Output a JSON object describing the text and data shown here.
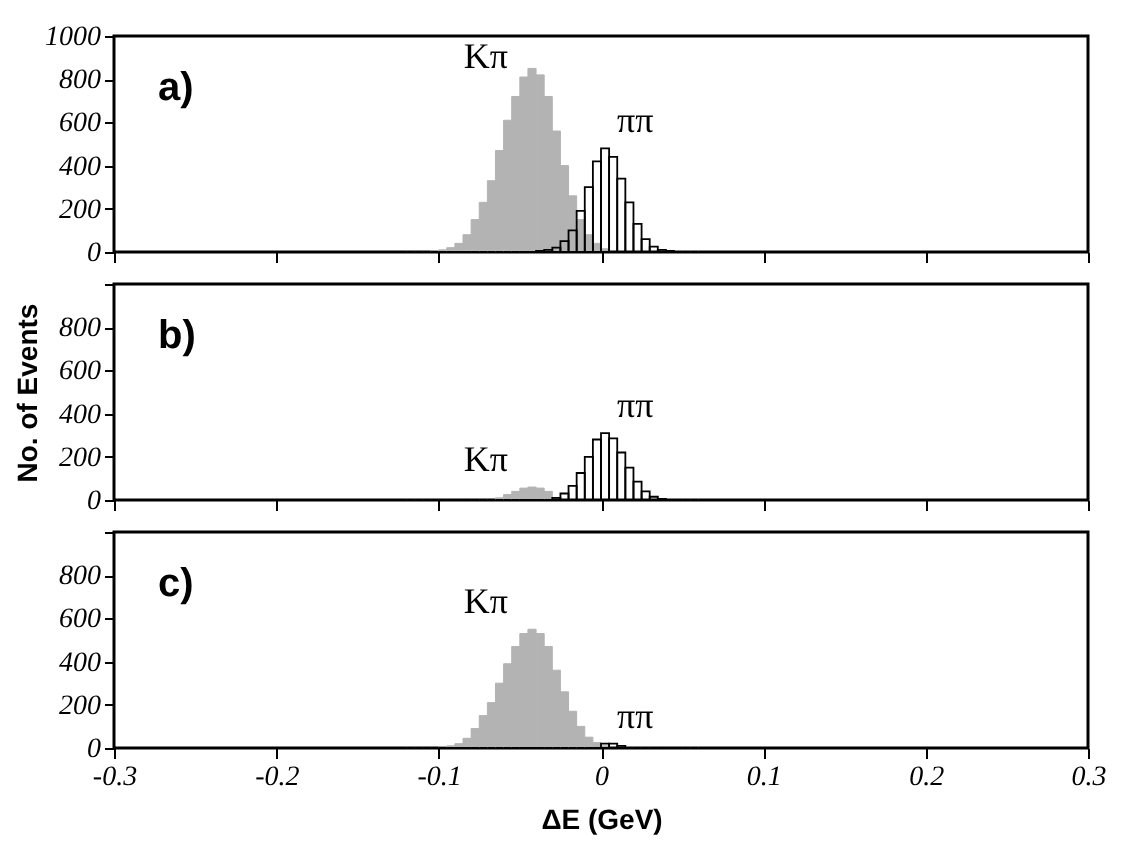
{
  "chart_data": [
    {
      "type": "histogram",
      "title": "a)",
      "tick_labels": "y",
      "grid": false,
      "bins": [
        -0.12,
        -0.115,
        -0.11,
        -0.105,
        -0.1,
        -0.095,
        -0.09,
        -0.085,
        -0.08,
        -0.075,
        -0.07,
        -0.065,
        -0.06,
        -0.055,
        -0.05,
        -0.045,
        -0.04,
        -0.035,
        -0.03,
        -0.025,
        -0.02,
        -0.015,
        -0.01,
        -0.005,
        0,
        0.005,
        0.01,
        0.015,
        0.02,
        0.025,
        0.03,
        0.035,
        0.04,
        0.045,
        0.05,
        0.055,
        0.06
      ],
      "xlim": [
        -0.3,
        0.3
      ],
      "xticks": [
        -0.3,
        -0.2,
        -0.1,
        0,
        0.1,
        0.2,
        0.3
      ],
      "ylim": [
        0,
        1000
      ],
      "yticks": [
        0,
        200,
        400,
        600,
        800,
        1000
      ],
      "series": [
        {
          "name": "Kπ",
          "color": "#b3b3b3",
          "values": [
            0,
            0,
            0,
            5,
            10,
            20,
            40,
            80,
            150,
            230,
            330,
            470,
            610,
            720,
            810,
            850,
            820,
            720,
            560,
            400,
            260,
            150,
            80,
            40,
            15,
            null,
            0,
            0,
            0,
            0,
            0,
            0,
            0,
            0,
            0,
            0
          ]
        },
        {
          "name": "ππ",
          "color": "#000000",
          "values": [
            0,
            0,
            0,
            0,
            0,
            0,
            0,
            0,
            0,
            0,
            0,
            0,
            0,
            0,
            0,
            0,
            5,
            10,
            20,
            50,
            100,
            190,
            300,
            420,
            480,
            440,
            340,
            230,
            130,
            60,
            25,
            10,
            5,
            0,
            0,
            0
          ]
        }
      ]
    },
    {
      "type": "histogram",
      "title": "b)",
      "tick_labels": "y",
      "grid": false,
      "ylabel": "No. of Events",
      "bins": [
        -0.12,
        -0.115,
        -0.11,
        -0.105,
        -0.1,
        -0.095,
        -0.09,
        -0.085,
        -0.08,
        -0.075,
        -0.07,
        -0.065,
        -0.06,
        -0.055,
        -0.05,
        -0.045,
        -0.04,
        -0.035,
        -0.03,
        -0.025,
        -0.02,
        -0.015,
        -0.01,
        -0.005,
        0,
        0.005,
        0.01,
        0.015,
        0.02,
        0.025,
        0.03,
        0.035,
        0.04,
        0.045,
        0.05,
        0.055,
        0.06
      ],
      "xlim": [
        -0.3,
        0.3
      ],
      "xticks": [
        -0.3,
        -0.2,
        -0.1,
        0,
        0.1,
        0.2,
        0.3
      ],
      "ylim": [
        0,
        1000
      ],
      "yticks": [
        0,
        200,
        400,
        600,
        800,
        {
          "value": 1000,
          "label": null
        }
      ],
      "series": [
        {
          "name": "Kπ",
          "color": "#b3b3b3",
          "values": [
            0,
            0,
            0,
            0,
            0,
            0,
            0,
            0,
            0,
            0,
            0,
            10,
            25,
            40,
            55,
            60,
            55,
            40,
            null,
            null,
            0,
            0,
            0,
            0,
            0,
            0,
            0,
            0,
            0,
            0,
            0,
            0,
            0,
            0,
            0,
            0
          ]
        },
        {
          "name": "ππ",
          "color": "#000000",
          "values": [
            0,
            0,
            0,
            0,
            0,
            0,
            0,
            0,
            0,
            0,
            0,
            0,
            0,
            0,
            0,
            0,
            0,
            0,
            10,
            30,
            65,
            125,
            200,
            280,
            310,
            285,
            220,
            150,
            85,
            40,
            15,
            5,
            0,
            0,
            0,
            0
          ]
        }
      ]
    },
    {
      "type": "histogram",
      "title": "c)",
      "grid": false,
      "xlabel": "ΔE (GeV)",
      "bins": [
        -0.12,
        -0.115,
        -0.11,
        -0.105,
        -0.1,
        -0.095,
        -0.09,
        -0.085,
        -0.08,
        -0.075,
        -0.07,
        -0.065,
        -0.06,
        -0.055,
        -0.05,
        -0.045,
        -0.04,
        -0.035,
        -0.03,
        -0.025,
        -0.02,
        -0.015,
        -0.01,
        -0.005,
        0,
        0.005,
        0.01,
        0.015,
        0.02,
        0.025,
        0.03,
        0.035,
        0.04,
        0.045,
        0.05,
        0.055,
        0.06
      ],
      "xlim": [
        -0.3,
        0.3
      ],
      "xticks": [
        -0.3,
        -0.2,
        -0.1,
        0,
        0.1,
        0.2,
        0.3
      ],
      "ylim": [
        0,
        1000
      ],
      "yticks": [
        0,
        200,
        400,
        600,
        800,
        {
          "value": 1000,
          "label": null
        }
      ],
      "series": [
        {
          "name": "Kπ",
          "color": "#b3b3b3",
          "values": [
            0,
            0,
            0,
            0,
            5,
            10,
            20,
            45,
            90,
            150,
            210,
            300,
            390,
            470,
            530,
            550,
            530,
            470,
            360,
            260,
            170,
            100,
            50,
            25,
            10,
            null,
            0,
            0,
            0,
            0,
            0,
            0,
            0,
            0,
            0,
            0
          ]
        },
        {
          "name": "ππ",
          "color": "#000000",
          "values": [
            0,
            0,
            0,
            0,
            0,
            0,
            0,
            0,
            0,
            0,
            0,
            0,
            0,
            0,
            0,
            0,
            0,
            0,
            0,
            0,
            0,
            0,
            0,
            0,
            20,
            20,
            10,
            0,
            0,
            0,
            0,
            0,
            0,
            0,
            0,
            0
          ]
        }
      ]
    }
  ]
}
